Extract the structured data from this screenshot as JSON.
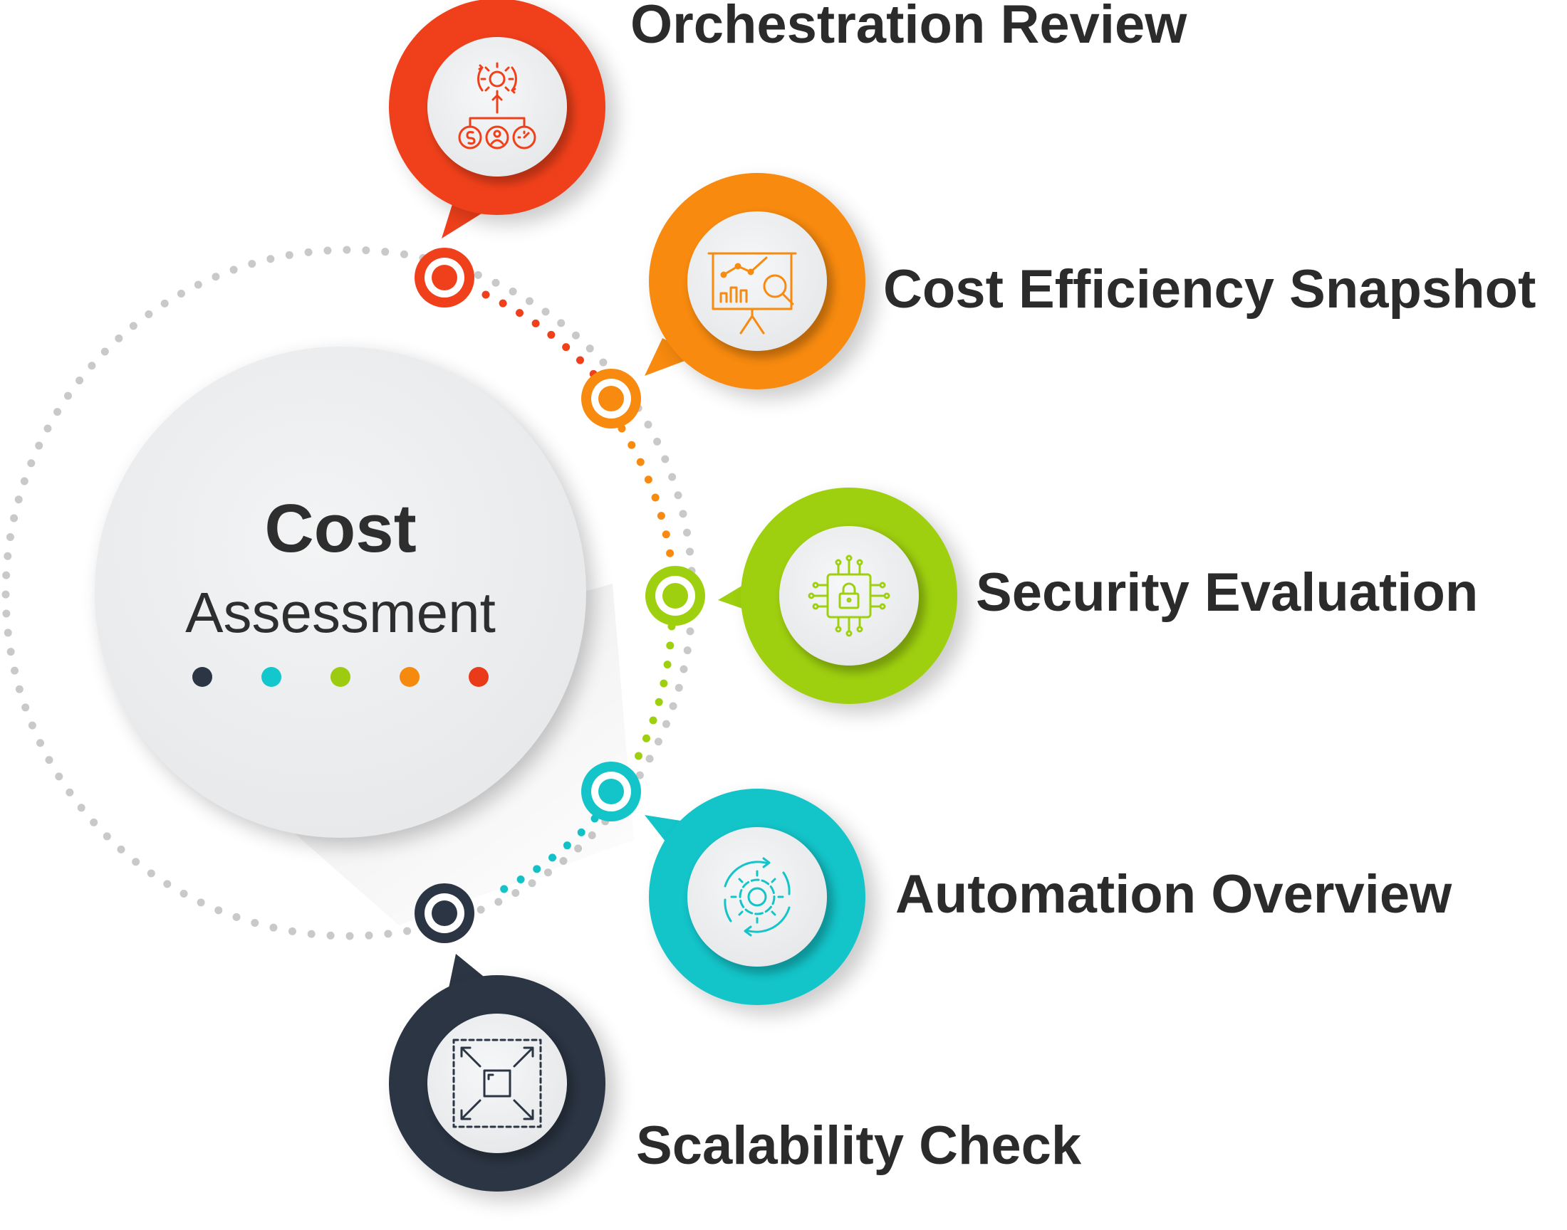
{
  "center": {
    "title": "Cost",
    "subtitle": "Assessment",
    "dot_colors": [
      "#2b3543",
      "#12c8cc",
      "#9ccb12",
      "#f58a0e",
      "#e93a1a"
    ]
  },
  "items": [
    {
      "label": "Orchestration Review",
      "color": "#f0401b",
      "icon": "orchestration-icon"
    },
    {
      "label": "Cost Efficiency Snapshot",
      "color": "#f78a0f",
      "icon": "presentation-analytics-icon"
    },
    {
      "label": "Security Evaluation",
      "color": "#9fd00f",
      "icon": "security-chip-icon"
    },
    {
      "label": "Automation Overview",
      "color": "#13c4c9",
      "icon": "automation-gear-icon"
    },
    {
      "label": "Scalability Check",
      "color": "#2b3543",
      "icon": "scalability-icon"
    }
  ],
  "colors": {
    "track": "#c9c9c9",
    "text": "#2b2b2b",
    "panel": "#eef0f1"
  }
}
